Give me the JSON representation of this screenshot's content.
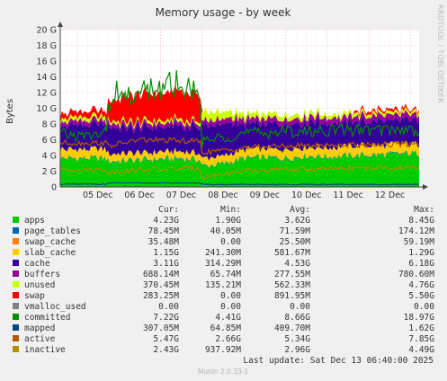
{
  "chart_data": {
    "type": "area",
    "title": "Memory usage - by week",
    "ylabel": "Bytes",
    "side_text": "RRDTOOL / TOBI OETIKER",
    "ylim": [
      0,
      20
    ],
    "y_unit": "G",
    "y_ticks": [
      "0",
      "2 G",
      "4 G",
      "6 G",
      "8 G",
      "10 G",
      "12 G",
      "14 G",
      "16 G",
      "18 G",
      "20 G"
    ],
    "x_ticks": [
      "05 Dec",
      "06 Dec",
      "07 Dec",
      "08 Dec",
      "09 Dec",
      "10 Dec",
      "11 Dec",
      "12 Dec"
    ],
    "x_range_days": [
      4.6,
      13.2
    ],
    "columns": [
      "Cur:",
      "Min:",
      "Avg:",
      "Max:"
    ],
    "series": [
      {
        "name": "apps",
        "color": "#00cc00",
        "draw": "area",
        "cur": "4.23G",
        "min": "1.90G",
        "avg": "3.62G",
        "max": "8.45G"
      },
      {
        "name": "page_tables",
        "color": "#0066b3",
        "draw": "area",
        "cur": "78.45M",
        "min": "40.05M",
        "avg": "71.59M",
        "max": "174.12M"
      },
      {
        "name": "swap_cache",
        "color": "#ff8000",
        "draw": "area",
        "cur": "35.48M",
        "min": "0.00",
        "avg": "25.50M",
        "max": "59.19M"
      },
      {
        "name": "slab_cache",
        "color": "#ffcc00",
        "draw": "area",
        "cur": "1.15G",
        "min": "241.30M",
        "avg": "581.67M",
        "max": "1.29G"
      },
      {
        "name": "cache",
        "color": "#330099",
        "draw": "area",
        "cur": "3.11G",
        "min": "314.29M",
        "avg": "4.53G",
        "max": "6.18G"
      },
      {
        "name": "buffers",
        "color": "#990099",
        "draw": "area",
        "cur": "688.14M",
        "min": "65.74M",
        "avg": "277.55M",
        "max": "780.60M"
      },
      {
        "name": "unused",
        "color": "#ccff00",
        "draw": "area",
        "cur": "370.45M",
        "min": "135.21M",
        "avg": "562.33M",
        "max": "4.76G"
      },
      {
        "name": "swap",
        "color": "#ff0000",
        "draw": "area",
        "cur": "283.25M",
        "min": "0.00",
        "avg": "891.95M",
        "max": "5.50G"
      },
      {
        "name": "vmalloc_used",
        "color": "#808080",
        "draw": "line",
        "cur": "0.00",
        "min": "0.00",
        "avg": "0.00",
        "max": "0.00"
      },
      {
        "name": "committed",
        "color": "#008f00",
        "draw": "line",
        "cur": "7.22G",
        "min": "4.41G",
        "avg": "8.66G",
        "max": "18.97G"
      },
      {
        "name": "mapped",
        "color": "#00487d",
        "draw": "line",
        "cur": "307.05M",
        "min": "64.85M",
        "avg": "409.70M",
        "max": "1.62G"
      },
      {
        "name": "active",
        "color": "#b35a00",
        "draw": "line",
        "cur": "5.47G",
        "min": "2.66G",
        "avg": "5.34G",
        "max": "7.85G"
      },
      {
        "name": "inactive",
        "color": "#b38f00",
        "draw": "line",
        "cur": "2.43G",
        "min": "937.92M",
        "avg": "2.96G",
        "max": "4.49G"
      }
    ],
    "profiles": {
      "apps": [
        [
          4.6,
          3.6
        ],
        [
          5.7,
          3.6
        ],
        [
          5.75,
          3.2
        ],
        [
          6.2,
          3.3
        ],
        [
          6.6,
          3.4
        ],
        [
          7.0,
          3.5
        ],
        [
          7.5,
          3.6
        ],
        [
          7.95,
          3.4
        ],
        [
          8.0,
          2.6
        ],
        [
          8.5,
          2.9
        ],
        [
          9.0,
          3.6
        ],
        [
          9.5,
          3.7
        ],
        [
          10.0,
          3.6
        ],
        [
          10.5,
          3.9
        ],
        [
          11.0,
          3.8
        ],
        [
          11.5,
          3.9
        ],
        [
          12.0,
          4.0
        ],
        [
          12.5,
          4.1
        ],
        [
          13.0,
          4.2
        ],
        [
          13.2,
          4.2
        ]
      ],
      "page_tables": [
        [
          4.6,
          0.07
        ],
        [
          13.2,
          0.08
        ]
      ],
      "swap_cache": [
        [
          4.6,
          0.03
        ],
        [
          13.2,
          0.035
        ]
      ],
      "slab_cache": [
        [
          4.6,
          1.1
        ],
        [
          5.7,
          1.1
        ],
        [
          5.75,
          0.9
        ],
        [
          7.95,
          0.8
        ],
        [
          8.0,
          0.9
        ],
        [
          9.0,
          1.0
        ],
        [
          10.0,
          1.1
        ],
        [
          11.0,
          1.1
        ],
        [
          12.0,
          1.15
        ],
        [
          13.2,
          1.15
        ]
      ],
      "cache": [
        [
          4.6,
          3.0
        ],
        [
          5.7,
          3.0
        ],
        [
          5.75,
          3.2
        ],
        [
          7.95,
          3.2
        ],
        [
          8.0,
          4.2
        ],
        [
          8.6,
          4.0
        ],
        [
          9.0,
          3.3
        ],
        [
          10.0,
          3.2
        ],
        [
          11.0,
          3.1
        ],
        [
          12.0,
          3.1
        ],
        [
          13.2,
          3.1
        ]
      ],
      "buffers": [
        [
          4.6,
          0.55
        ],
        [
          5.7,
          0.55
        ],
        [
          5.75,
          0.5
        ],
        [
          7.95,
          0.5
        ],
        [
          8.0,
          0.6
        ],
        [
          9.0,
          0.65
        ],
        [
          10.0,
          0.65
        ],
        [
          11.0,
          0.68
        ],
        [
          12.0,
          0.69
        ],
        [
          13.2,
          0.69
        ]
      ],
      "unused": [
        [
          4.6,
          0.45
        ],
        [
          5.7,
          0.45
        ],
        [
          5.75,
          0.35
        ],
        [
          7.95,
          0.35
        ],
        [
          8.0,
          1.1
        ],
        [
          8.6,
          0.9
        ],
        [
          9.0,
          0.6
        ],
        [
          10.0,
          0.55
        ],
        [
          11.0,
          0.45
        ],
        [
          12.0,
          0.4
        ],
        [
          13.2,
          0.37
        ]
      ],
      "swap": [
        [
          4.6,
          0.7
        ],
        [
          5.7,
          0.7
        ],
        [
          5.75,
          2.4
        ],
        [
          6.2,
          3.2
        ],
        [
          6.6,
          3.4
        ],
        [
          7.0,
          3.5
        ],
        [
          7.5,
          3.6
        ],
        [
          7.95,
          3.6
        ],
        [
          8.0,
          0.0
        ],
        [
          11.6,
          0.0
        ],
        [
          11.7,
          0.3
        ],
        [
          13.2,
          0.28
        ]
      ],
      "vmalloc_used": [
        [
          4.6,
          0.0
        ],
        [
          13.2,
          0.0
        ]
      ],
      "committed": [
        [
          4.6,
          6.7
        ],
        [
          5.2,
          6.4
        ],
        [
          5.7,
          6.8
        ],
        [
          5.75,
          9.6
        ],
        [
          6.0,
          11.5
        ],
        [
          6.3,
          11.0
        ],
        [
          6.6,
          11.8
        ],
        [
          7.0,
          11.6
        ],
        [
          7.5,
          12.0
        ],
        [
          7.95,
          11.6
        ],
        [
          8.0,
          5.6
        ],
        [
          8.5,
          6.4
        ],
        [
          9.0,
          6.8
        ],
        [
          9.5,
          6.9
        ],
        [
          10.0,
          7.1
        ],
        [
          10.5,
          7.0
        ],
        [
          11.0,
          7.2
        ],
        [
          11.5,
          7.3
        ],
        [
          12.0,
          7.2
        ],
        [
          12.5,
          7.3
        ],
        [
          13.2,
          7.22
        ]
      ],
      "mapped": [
        [
          4.6,
          0.35
        ],
        [
          5.7,
          0.35
        ],
        [
          5.75,
          0.5
        ],
        [
          7.95,
          0.5
        ],
        [
          8.0,
          0.3
        ],
        [
          13.2,
          0.31
        ]
      ],
      "active": [
        [
          4.6,
          5.6
        ],
        [
          5.7,
          5.6
        ],
        [
          5.75,
          5.2
        ],
        [
          6.5,
          6.0
        ],
        [
          7.95,
          5.8
        ],
        [
          8.0,
          4.4
        ],
        [
          8.5,
          4.6
        ],
        [
          9.0,
          5.0
        ],
        [
          10.0,
          5.2
        ],
        [
          11.0,
          5.3
        ],
        [
          12.0,
          5.4
        ],
        [
          13.2,
          5.47
        ]
      ],
      "inactive": [
        [
          4.6,
          2.2
        ],
        [
          5.7,
          2.2
        ],
        [
          5.75,
          1.8
        ],
        [
          6.5,
          2.2
        ],
        [
          7.95,
          2.4
        ],
        [
          8.0,
          1.3
        ],
        [
          8.5,
          1.6
        ],
        [
          9.0,
          2.0
        ],
        [
          10.0,
          2.2
        ],
        [
          11.0,
          2.3
        ],
        [
          12.0,
          2.4
        ],
        [
          13.2,
          2.43
        ]
      ]
    }
  },
  "footer": {
    "last_update": "Last update:  Sat Dec 13 06:40:00 2025",
    "version": "Munin 2.0.33-1"
  }
}
